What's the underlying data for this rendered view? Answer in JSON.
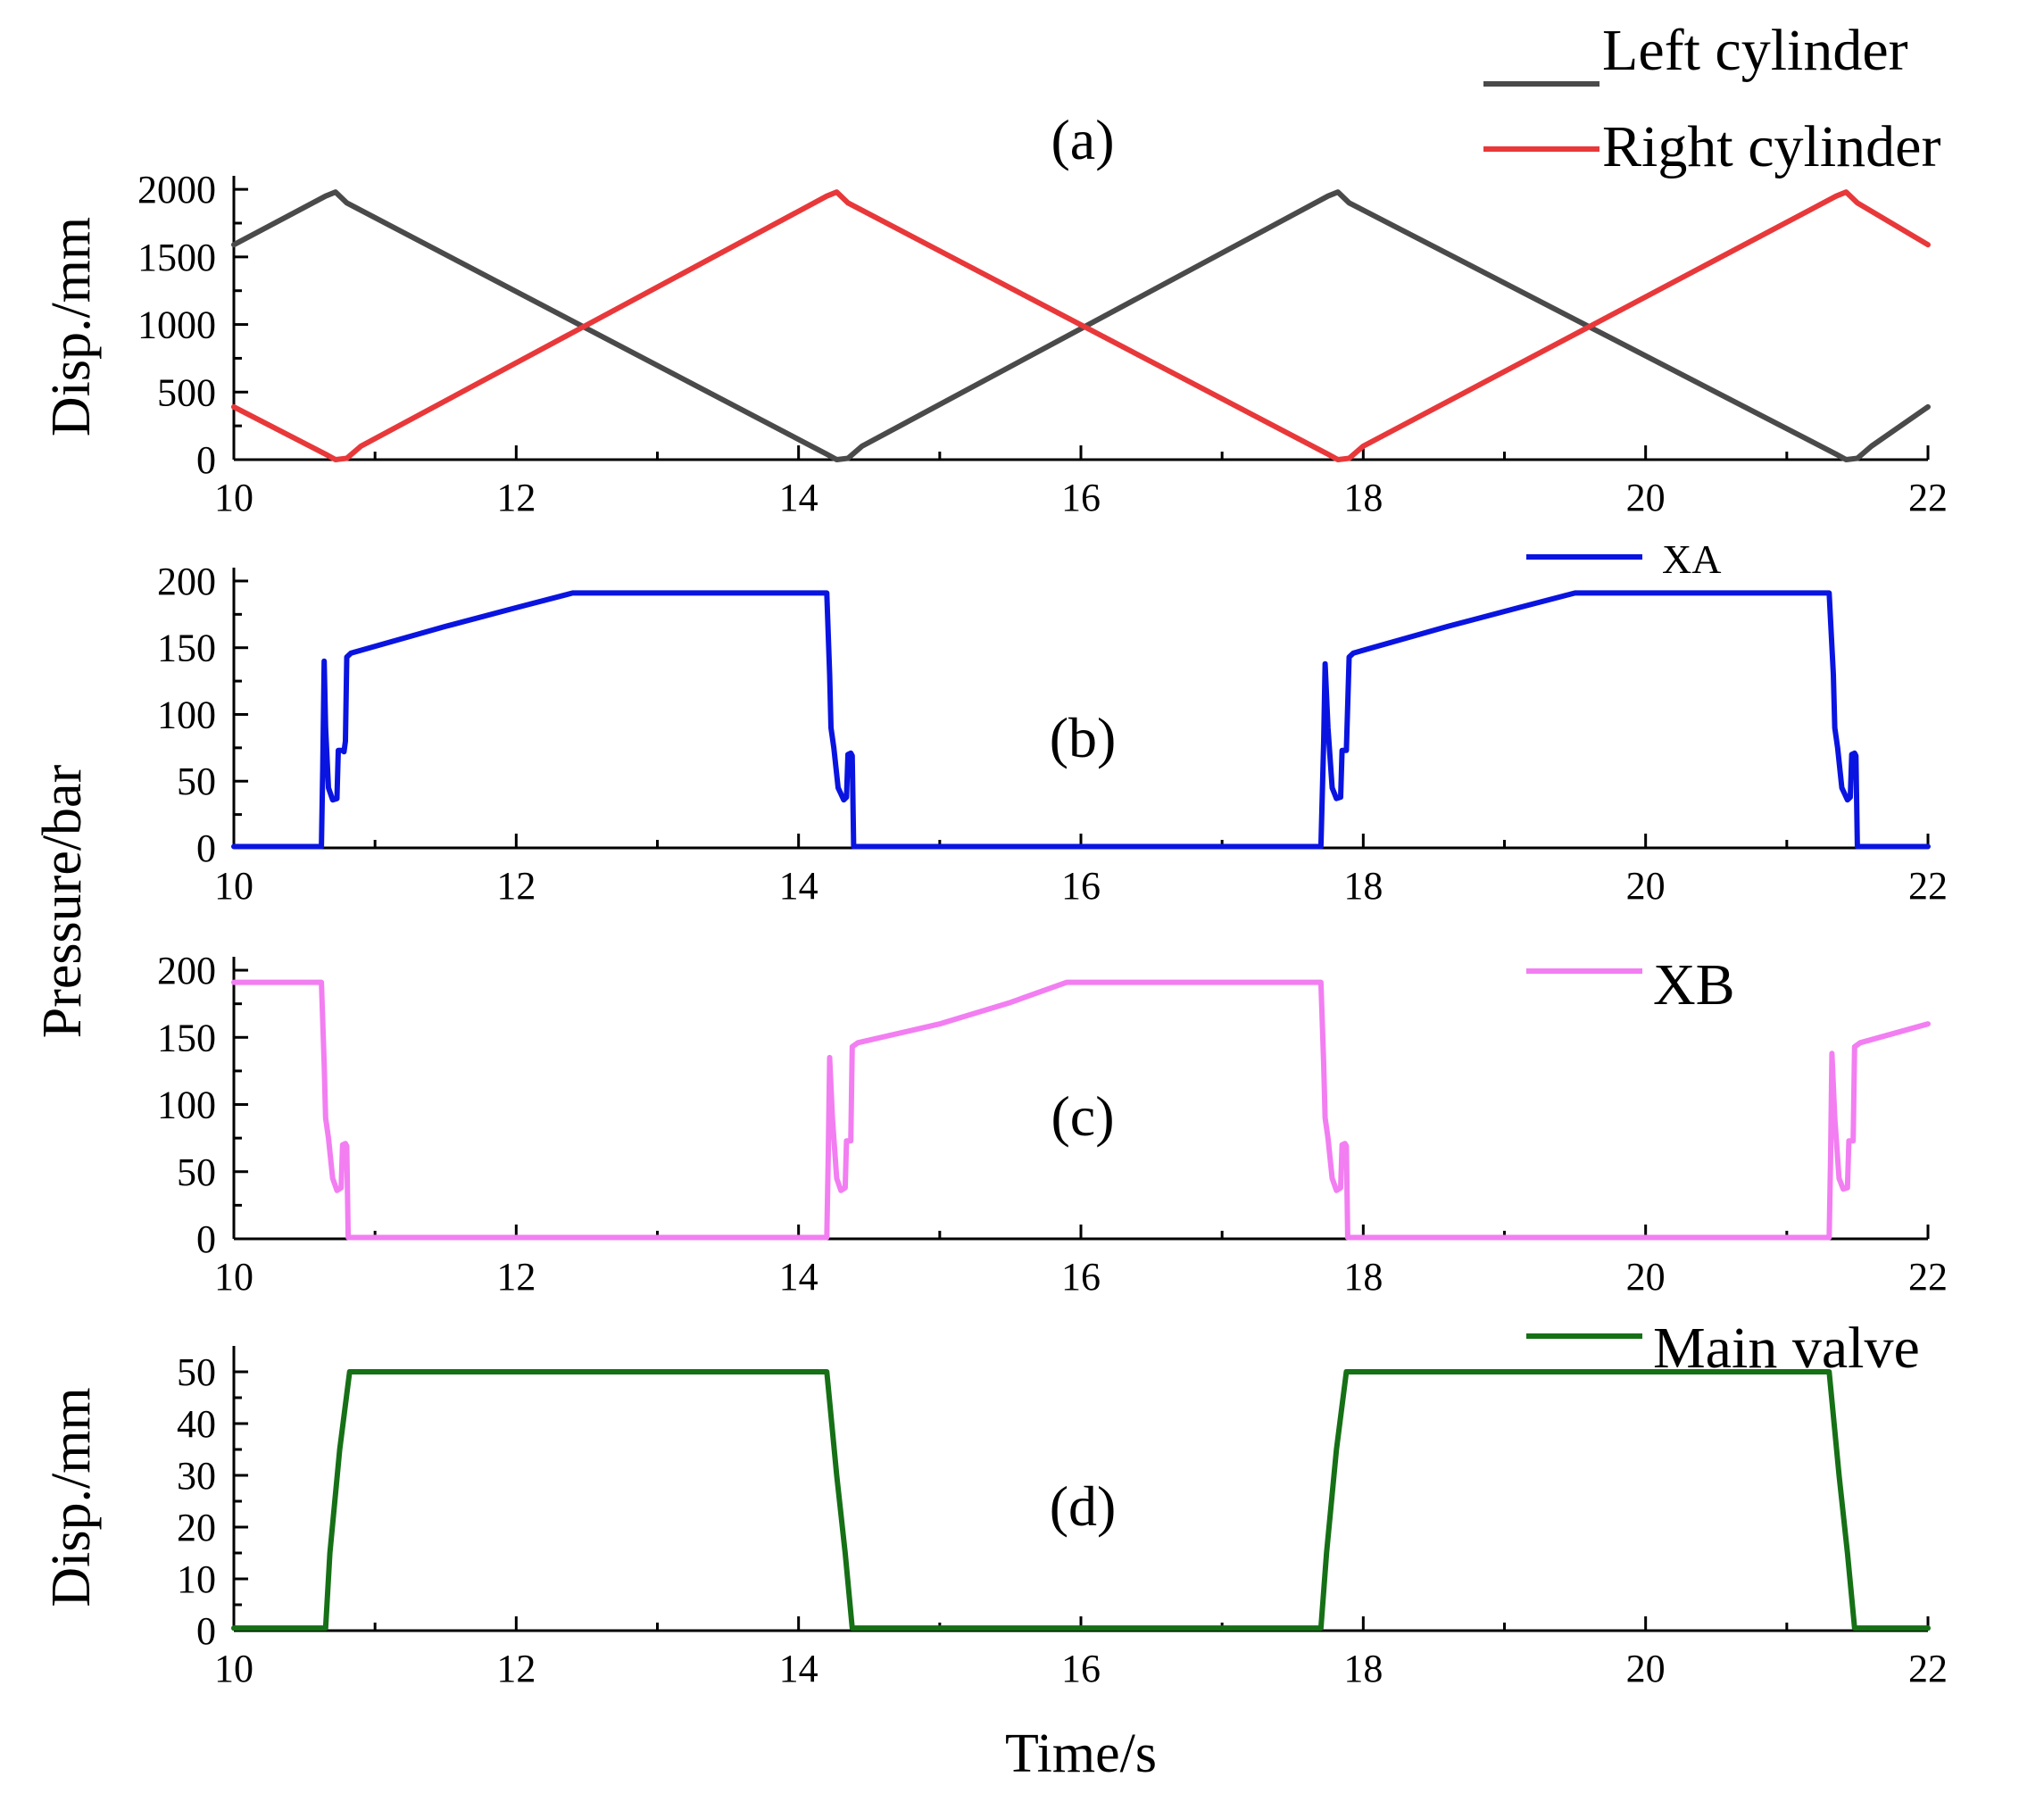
{
  "chart_data": [
    {
      "id": "a",
      "type": "line",
      "panel_label": "(a)",
      "ylabel": "Disp./mm",
      "xlabel": "",
      "xlim": [
        10,
        22
      ],
      "ylim": [
        0,
        2100
      ],
      "xticks": [
        10,
        12,
        14,
        16,
        18,
        20,
        22
      ],
      "yticks": [
        0,
        500,
        1000,
        1500,
        2000
      ],
      "series": [
        {
          "name": "Left cylinder",
          "color": "#4a4a4a",
          "points": [
            [
              10,
              1590
            ],
            [
              10.65,
              1950
            ],
            [
              10.72,
              1980
            ],
            [
              10.8,
              1900
            ],
            [
              14.2,
              40
            ],
            [
              14.27,
              0
            ],
            [
              14.35,
              10
            ],
            [
              14.45,
              100
            ],
            [
              17.75,
              1950
            ],
            [
              17.82,
              1980
            ],
            [
              17.9,
              1900
            ],
            [
              21.35,
              40
            ],
            [
              21.42,
              0
            ],
            [
              21.5,
              10
            ],
            [
              21.6,
              100
            ],
            [
              22,
              390
            ]
          ]
        },
        {
          "name": "Right cylinder",
          "color": "#e8383a",
          "points": [
            [
              10,
              390
            ],
            [
              10.65,
              40
            ],
            [
              10.72,
              0
            ],
            [
              10.8,
              10
            ],
            [
              10.9,
              100
            ],
            [
              14.2,
              1950
            ],
            [
              14.27,
              1980
            ],
            [
              14.35,
              1900
            ],
            [
              17.75,
              40
            ],
            [
              17.82,
              0
            ],
            [
              17.9,
              10
            ],
            [
              18.0,
              100
            ],
            [
              21.35,
              1950
            ],
            [
              21.42,
              1980
            ],
            [
              21.5,
              1900
            ],
            [
              22,
              1590
            ]
          ]
        }
      ]
    },
    {
      "id": "b",
      "type": "line",
      "panel_label": "(b)",
      "ylabel": "",
      "xlabel": "",
      "xlim": [
        10,
        22
      ],
      "ylim": [
        0,
        210
      ],
      "xticks": [
        10,
        12,
        14,
        16,
        18,
        20,
        22
      ],
      "yticks": [
        0,
        50,
        100,
        150,
        200
      ],
      "series": [
        {
          "name": "XA",
          "color": "#0a14e0",
          "points": [
            [
              10,
              1
            ],
            [
              10.62,
              1
            ],
            [
              10.63,
              60
            ],
            [
              10.64,
              140
            ],
            [
              10.65,
              90
            ],
            [
              10.67,
              45
            ],
            [
              10.7,
              36
            ],
            [
              10.73,
              37
            ],
            [
              10.74,
              73
            ],
            [
              10.77,
              73
            ],
            [
              10.78,
              72
            ],
            [
              10.79,
              80
            ],
            [
              10.8,
              143
            ],
            [
              10.83,
              146
            ],
            [
              11.5,
              166
            ],
            [
              12.0,
              180
            ],
            [
              12.4,
              191
            ],
            [
              14.2,
              191
            ],
            [
              14.22,
              130
            ],
            [
              14.23,
              90
            ],
            [
              14.25,
              75
            ],
            [
              14.28,
              45
            ],
            [
              14.32,
              36
            ],
            [
              14.34,
              38
            ],
            [
              14.35,
              70
            ],
            [
              14.37,
              71
            ],
            [
              14.38,
              69
            ],
            [
              14.39,
              1
            ],
            [
              17.7,
              1
            ],
            [
              17.72,
              80
            ],
            [
              17.73,
              138
            ],
            [
              17.75,
              90
            ],
            [
              17.78,
              45
            ],
            [
              17.81,
              37
            ],
            [
              17.84,
              38
            ],
            [
              17.85,
              73
            ],
            [
              17.88,
              73
            ],
            [
              17.9,
              143
            ],
            [
              17.93,
              146
            ],
            [
              18.6,
              166
            ],
            [
              19.1,
              180
            ],
            [
              19.5,
              191
            ],
            [
              21.3,
              191
            ],
            [
              21.33,
              130
            ],
            [
              21.34,
              90
            ],
            [
              21.36,
              75
            ],
            [
              21.39,
              45
            ],
            [
              21.43,
              36
            ],
            [
              21.45,
              38
            ],
            [
              21.46,
              70
            ],
            [
              21.48,
              71
            ],
            [
              21.49,
              69
            ],
            [
              21.5,
              1
            ],
            [
              22,
              1
            ]
          ]
        }
      ]
    },
    {
      "id": "c",
      "type": "line",
      "panel_label": "(c)",
      "ylabel": "",
      "xlabel": "",
      "xlim": [
        10,
        22
      ],
      "ylim": [
        0,
        210
      ],
      "xticks": [
        10,
        12,
        14,
        16,
        18,
        20,
        22
      ],
      "yticks": [
        0,
        50,
        100,
        150,
        200
      ],
      "series": [
        {
          "name": "XB",
          "color": "#f27ef2",
          "points": [
            [
              10,
              191
            ],
            [
              10.62,
              191
            ],
            [
              10.64,
              130
            ],
            [
              10.65,
              90
            ],
            [
              10.67,
              75
            ],
            [
              10.7,
              45
            ],
            [
              10.73,
              36
            ],
            [
              10.76,
              38
            ],
            [
              10.77,
              70
            ],
            [
              10.79,
              71
            ],
            [
              10.8,
              69
            ],
            [
              10.81,
              1
            ],
            [
              14.2,
              1
            ],
            [
              14.21,
              60
            ],
            [
              14.22,
              135
            ],
            [
              14.24,
              90
            ],
            [
              14.27,
              45
            ],
            [
              14.3,
              36
            ],
            [
              14.33,
              38
            ],
            [
              14.34,
              73
            ],
            [
              14.37,
              73
            ],
            [
              14.38,
              143
            ],
            [
              14.42,
              146
            ],
            [
              15.0,
              160
            ],
            [
              15.5,
              176
            ],
            [
              15.9,
              191
            ],
            [
              17.7,
              191
            ],
            [
              17.72,
              130
            ],
            [
              17.73,
              90
            ],
            [
              17.75,
              75
            ],
            [
              17.78,
              45
            ],
            [
              17.81,
              36
            ],
            [
              17.84,
              38
            ],
            [
              17.85,
              70
            ],
            [
              17.87,
              71
            ],
            [
              17.88,
              69
            ],
            [
              17.89,
              1
            ],
            [
              21.3,
              1
            ],
            [
              21.31,
              60
            ],
            [
              21.32,
              138
            ],
            [
              21.34,
              90
            ],
            [
              21.37,
              45
            ],
            [
              21.4,
              37
            ],
            [
              21.43,
              38
            ],
            [
              21.44,
              73
            ],
            [
              21.47,
              73
            ],
            [
              21.48,
              143
            ],
            [
              21.52,
              146
            ],
            [
              22,
              160
            ]
          ]
        }
      ]
    },
    {
      "id": "d",
      "type": "line",
      "panel_label": "(d)",
      "ylabel": "Disp./mm",
      "xlabel": "Time/s",
      "xlim": [
        10,
        22
      ],
      "ylim": [
        0,
        55
      ],
      "xticks": [
        10,
        12,
        14,
        16,
        18,
        20,
        22
      ],
      "yticks": [
        0,
        10,
        20,
        30,
        40,
        50
      ],
      "series": [
        {
          "name": "Main valve",
          "color": "#167016",
          "points": [
            [
              10,
              0.5
            ],
            [
              10.65,
              0.5
            ],
            [
              10.68,
              15
            ],
            [
              10.75,
              35
            ],
            [
              10.82,
              50
            ],
            [
              14.2,
              50
            ],
            [
              14.27,
              30
            ],
            [
              14.33,
              15
            ],
            [
              14.38,
              0.5
            ],
            [
              17.7,
              0.5
            ],
            [
              17.74,
              15
            ],
            [
              17.81,
              35
            ],
            [
              17.88,
              50
            ],
            [
              21.3,
              50
            ],
            [
              21.37,
              30
            ],
            [
              21.43,
              15
            ],
            [
              21.48,
              0.5
            ],
            [
              22,
              0.5
            ]
          ]
        }
      ]
    }
  ],
  "shared_ylabel": "Pressure/bar"
}
